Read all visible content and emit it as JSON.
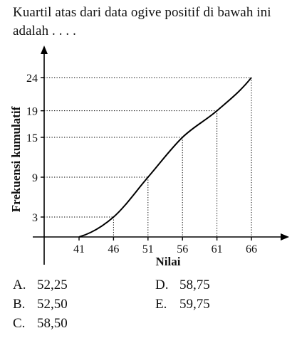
{
  "question": "Kuartil atas dari data ogive positif di bawah ini adalah . . . .",
  "chart_data": {
    "type": "line",
    "curve": "cumulative frequency ogive",
    "xlabel": "Nilai",
    "ylabel": "Frekuensi kumulatif",
    "x_ticks": [
      "41",
      "46",
      "51",
      "56",
      "61",
      "66"
    ],
    "y_ticks": [
      "3",
      "9",
      "15",
      "19",
      "24"
    ],
    "x": [
      41,
      46,
      51,
      56,
      61,
      66
    ],
    "y": [
      0,
      3,
      9,
      15,
      19,
      24
    ],
    "xlim": [
      41,
      66
    ],
    "ylim": [
      0,
      24
    ],
    "grid": "dotted guide lines to each point",
    "color": "#000000"
  },
  "options": [
    {
      "letter": "A.",
      "value": "52,25"
    },
    {
      "letter": "B.",
      "value": "52,50"
    },
    {
      "letter": "C.",
      "value": "58,50"
    },
    {
      "letter": "D.",
      "value": "58,75"
    },
    {
      "letter": "E.",
      "value": "59,75"
    }
  ]
}
